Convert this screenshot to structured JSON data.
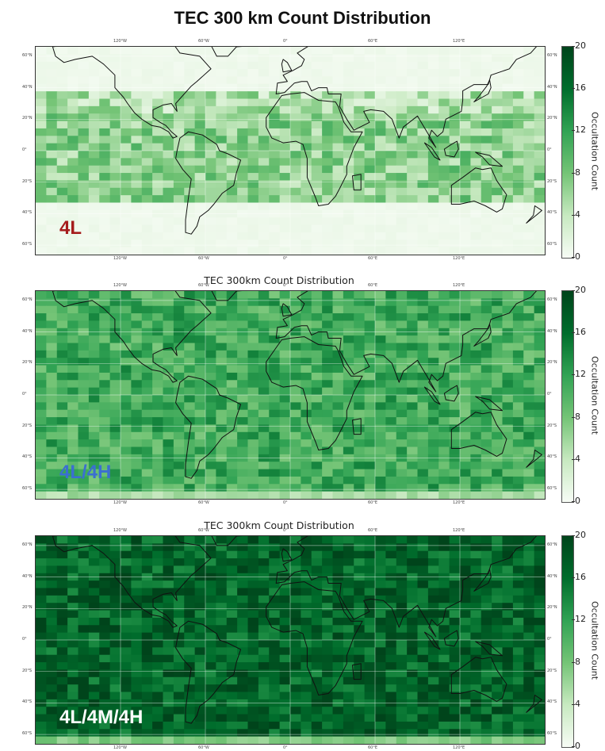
{
  "title": "TEC 300 km Count Distribution",
  "panels": [
    {
      "label": "4L",
      "label_color": "#a51c1c",
      "subtitle": "",
      "level": 0.35,
      "band": [
        -35,
        38
      ]
    },
    {
      "label": "4L/4H",
      "label_color": "#3b6fd1",
      "subtitle": "TEC 300km Count Distribution",
      "level": 0.55,
      "band": [
        -60,
        65
      ]
    },
    {
      "label": "4L/4M/4H",
      "label_color": "#ffffff",
      "subtitle": "TEC 300km Count Distribution",
      "level": 0.85,
      "band": [
        -60,
        65
      ]
    }
  ],
  "lon_ticks": [
    "120°W",
    "60°W",
    "0°",
    "60°E",
    "120°E"
  ],
  "lat_ticks_left": [
    "60°N",
    "40°N",
    "20°N",
    "0°",
    "20°S",
    "40°S",
    "60°S"
  ],
  "lat_ticks_right": [
    "60°N",
    "40°N",
    "20°N",
    "0°",
    "20°S",
    "40°S",
    "60°S"
  ],
  "colorbar": {
    "ticks": [
      "20",
      "16",
      "12",
      "8",
      "4",
      "0"
    ],
    "label": "Occultation Count",
    "min": 0,
    "max": 20,
    "colormap": "Greens",
    "colors": [
      "#f7fcf5",
      "#c7e9c0",
      "#74c476",
      "#31a354",
      "#006d2c",
      "#00441b"
    ]
  },
  "coastline_color": "#111111"
}
